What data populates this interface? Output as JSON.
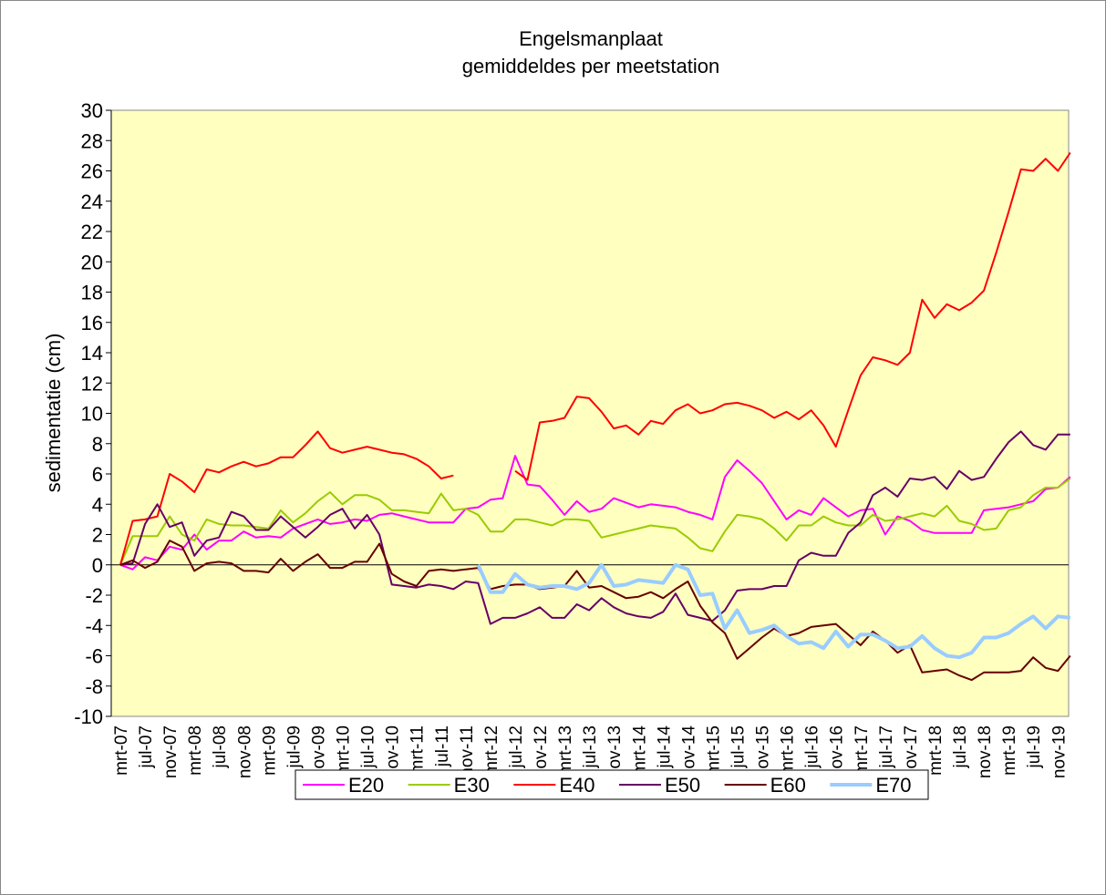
{
  "chart_data": {
    "type": "line",
    "title": "Engelsmanplaat",
    "subtitle": "gemiddeldes per meetstation",
    "y_label": "sedimentatie (cm)",
    "categories": [
      "mrt-07",
      null,
      "jul-07",
      null,
      "nov-07",
      null,
      "mrt-08",
      null,
      "jul-08",
      null,
      "nov-08",
      null,
      "mrt-09",
      null,
      "jul-09",
      null,
      "nov-09",
      null,
      "mrt-10",
      null,
      "jul-10",
      null,
      "nov-10",
      null,
      "mrt-11",
      null,
      "jul-11",
      null,
      "nov-11",
      null,
      "mrt-12",
      null,
      "jul-12",
      null,
      "nov-12",
      null,
      "mrt-13",
      null,
      "jul-13",
      null,
      "nov-13",
      null,
      "mrt-14",
      null,
      "jul-14",
      null,
      "nov-14",
      null,
      "mrt-15",
      null,
      "jul-15",
      null,
      "nov-15",
      null,
      "mrt-16",
      null,
      "jul-16",
      null,
      "nov-16",
      null,
      "mrt-17",
      null,
      "jul-17",
      null,
      "nov-17",
      null,
      "mrt-18",
      null,
      "jul-18",
      null,
      "nov-18",
      null,
      "mrt-19",
      null,
      "jul-19",
      null,
      "nov-19",
      null
    ],
    "series": [
      {
        "name": "E20",
        "color": "#ff00ff",
        "values": [
          0,
          -0.3,
          0.5,
          0.3,
          1.2,
          1.0,
          2.0,
          1.0,
          1.6,
          1.6,
          2.2,
          1.8,
          1.9,
          1.8,
          2.4,
          2.7,
          3.0,
          2.7,
          2.8,
          3.0,
          2.9,
          3.3,
          3.4,
          3.2,
          3.0,
          2.8,
          2.8,
          2.8,
          3.7,
          3.8,
          4.3,
          4.4,
          7.2,
          5.3,
          5.2,
          4.3,
          3.3,
          4.2,
          3.5,
          3.7,
          4.4,
          4.1,
          3.8,
          4.0,
          3.9,
          3.8,
          3.5,
          3.3,
          3.0,
          5.8,
          6.9,
          6.2,
          5.4,
          4.2,
          3.0,
          3.6,
          3.3,
          4.4,
          3.8,
          3.2,
          3.6,
          3.7,
          2.0,
          3.2,
          2.9,
          2.3,
          2.1,
          2.1,
          2.1,
          2.1,
          3.6,
          3.7,
          3.8,
          4.0,
          4.2,
          5.0,
          5.1,
          5.8
        ]
      },
      {
        "name": "E30",
        "color": "#99cc00",
        "values": [
          0,
          1.9,
          1.9,
          1.9,
          3.2,
          2.0,
          1.6,
          3.0,
          2.7,
          2.6,
          2.6,
          2.5,
          2.4,
          3.6,
          2.8,
          3.4,
          4.2,
          4.8,
          4.0,
          4.6,
          4.6,
          4.3,
          3.6,
          3.6,
          3.5,
          3.4,
          4.7,
          3.6,
          3.7,
          3.3,
          2.2,
          2.2,
          3.0,
          3.0,
          2.8,
          2.6,
          3.0,
          3.0,
          2.9,
          1.8,
          2.0,
          2.2,
          2.4,
          2.6,
          2.5,
          2.4,
          1.8,
          1.1,
          0.9,
          2.2,
          3.3,
          3.2,
          3.0,
          2.4,
          1.6,
          2.6,
          2.6,
          3.2,
          2.8,
          2.6,
          2.6,
          3.3,
          2.9,
          3.0,
          3.2,
          3.4,
          3.2,
          3.9,
          2.9,
          2.7,
          2.3,
          2.4,
          3.6,
          3.8,
          4.6,
          5.1,
          5.1,
          5.7
        ]
      },
      {
        "name": "E40",
        "color": "#ff0000",
        "values": [
          0,
          2.9,
          3,
          3.2,
          6,
          5.5,
          4.8,
          6.3,
          6.1,
          6.5,
          6.8,
          6.5,
          6.7,
          7.1,
          7.1,
          7.9,
          8.8,
          7.7,
          7.4,
          7.6,
          7.8,
          7.6,
          7.4,
          7.3,
          7.0,
          6.5,
          5.7,
          5.9,
          null,
          null,
          null,
          null,
          6.2,
          5.6,
          9.4,
          9.5,
          9.7,
          11.1,
          11.0,
          10.1,
          9.0,
          9.2,
          8.6,
          9.5,
          9.3,
          10.2,
          10.6,
          10.0,
          10.2,
          10.6,
          10.7,
          10.5,
          10.2,
          9.7,
          10.1,
          9.6,
          10.2,
          9.2,
          7.8,
          10.2,
          12.5,
          13.7,
          13.5,
          13.2,
          14.0,
          17.5,
          16.3,
          17.2,
          16.8,
          17.3,
          18.1,
          20.6,
          23.3,
          26.1,
          26.0,
          26.8,
          26.0,
          27.2
        ]
      },
      {
        "name": "E50",
        "color": "#660066",
        "values": [
          0,
          0.1,
          2.7,
          4.0,
          2.5,
          2.8,
          0.6,
          1.6,
          1.8,
          3.5,
          3.2,
          2.3,
          2.3,
          3.2,
          2.5,
          1.8,
          2.5,
          3.3,
          3.7,
          2.4,
          3.3,
          2.0,
          -1.3,
          -1.4,
          -1.5,
          -1.3,
          -1.4,
          -1.6,
          -1.1,
          -1.2,
          -3.9,
          -3.5,
          -3.5,
          -3.2,
          -2.8,
          -3.5,
          -3.5,
          -2.6,
          -3.0,
          -2.2,
          -2.8,
          -3.2,
          -3.4,
          -3.5,
          -3.1,
          -1.9,
          -3.3,
          -3.5,
          -3.7,
          -3.0,
          -1.7,
          -1.6,
          -1.6,
          -1.4,
          -1.4,
          0.3,
          0.8,
          0.6,
          0.6,
          2.1,
          2.8,
          4.6,
          5.1,
          4.5,
          5.7,
          5.6,
          5.8,
          5.0,
          6.2,
          5.6,
          5.8,
          7.0,
          8.1,
          8.8,
          7.9,
          7.6,
          8.6,
          8.6
        ]
      },
      {
        "name": "E60",
        "color": "#660000",
        "values": [
          0,
          0.3,
          -0.2,
          0.2,
          1.6,
          1.2,
          -0.4,
          0.1,
          0.2,
          0.1,
          -0.4,
          -0.4,
          -0.5,
          0.4,
          -0.4,
          0.2,
          0.7,
          -0.2,
          -0.2,
          0.2,
          0.2,
          1.4,
          -0.6,
          -1.1,
          -1.4,
          -0.4,
          -0.3,
          -0.4,
          -0.3,
          -0.2,
          -1.6,
          -1.4,
          -1.3,
          -1.3,
          -1.6,
          -1.5,
          -1.4,
          -0.4,
          -1.5,
          -1.4,
          -1.8,
          -2.2,
          -2.1,
          -1.8,
          -2.2,
          -1.6,
          -1.1,
          -2.7,
          -3.8,
          -4.5,
          -6.2,
          -5.5,
          -4.8,
          -4.2,
          -4.7,
          -4.5,
          -4.1,
          -4.0,
          -3.9,
          -4.6,
          -5.3,
          -4.4,
          -5.0,
          -5.8,
          -5.3,
          -7.1,
          -7.0,
          -6.9,
          -7.3,
          -7.6,
          -7.1,
          -7.1,
          -7.1,
          -7.0,
          -6.1,
          -6.8,
          -7.0,
          -6.0
        ]
      },
      {
        "name": "E70",
        "color": "#99ccff",
        "values": [
          null,
          null,
          null,
          null,
          null,
          null,
          null,
          null,
          null,
          null,
          null,
          null,
          null,
          null,
          null,
          null,
          null,
          null,
          null,
          null,
          null,
          null,
          null,
          null,
          null,
          null,
          null,
          null,
          null,
          0.0,
          -1.8,
          -1.8,
          -0.6,
          -1.3,
          -1.5,
          -1.4,
          -1.4,
          -1.6,
          -1.2,
          0.0,
          -1.4,
          -1.3,
          -1.0,
          -1.1,
          -1.2,
          0.0,
          -0.3,
          -2.0,
          -1.9,
          -4.2,
          -3.0,
          -4.5,
          -4.3,
          -4.0,
          -4.7,
          -5.2,
          -5.1,
          -5.5,
          -4.4,
          -5.4,
          -4.6,
          -4.6,
          -5.0,
          -5.5,
          -5.4,
          -4.7,
          -5.5,
          -6.0,
          -6.1,
          -5.8,
          -4.8,
          -4.8,
          -4.5,
          -3.9,
          -3.4,
          -4.2,
          -3.4,
          -3.5
        ]
      }
    ],
    "ylim": [
      -10,
      30
    ],
    "yticks": [
      -10,
      -8,
      -6,
      -4,
      -2,
      0,
      2,
      4,
      6,
      8,
      10,
      12,
      14,
      16,
      18,
      20,
      22,
      24,
      26,
      28,
      30
    ],
    "grid": false,
    "legend": "bottom",
    "plot_background": "#ffffc0"
  }
}
